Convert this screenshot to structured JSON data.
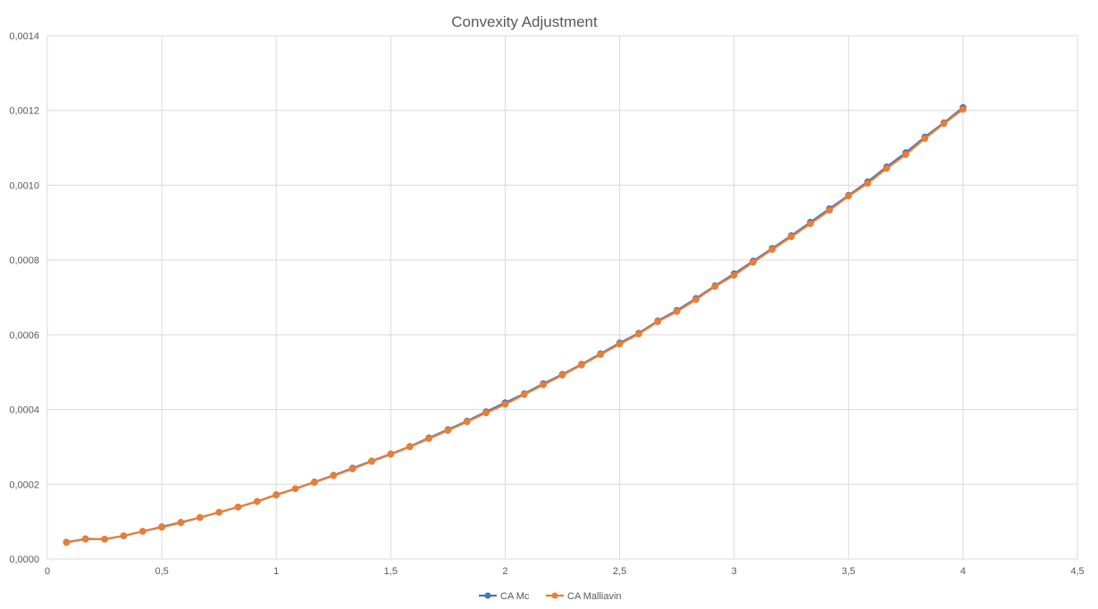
{
  "chart_data": {
    "type": "line",
    "title": "Convexity Adjustment",
    "xlabel": "",
    "ylabel": "",
    "xlim": [
      0,
      4.5
    ],
    "ylim": [
      0,
      0.0014
    ],
    "x_ticks": [
      "0",
      "0,5",
      "1",
      "1,5",
      "2",
      "2,5",
      "3",
      "3,5",
      "4",
      "4,5"
    ],
    "x_tick_values": [
      0,
      0.5,
      1,
      1.5,
      2,
      2.5,
      3,
      3.5,
      4,
      4.5
    ],
    "y_ticks": [
      "0,0000",
      "0,0002",
      "0,0004",
      "0,0006",
      "0,0008",
      "0,0010",
      "0,0012",
      "0,0014"
    ],
    "y_tick_values": [
      0,
      0.0002,
      0.0004,
      0.0006,
      0.0008,
      0.001,
      0.0012,
      0.0014
    ],
    "grid": true,
    "legend_position": "bottom",
    "x": [
      0.0833,
      0.1667,
      0.25,
      0.3333,
      0.4167,
      0.5,
      0.5833,
      0.6667,
      0.75,
      0.8333,
      0.9167,
      1.0,
      1.0833,
      1.1667,
      1.25,
      1.3333,
      1.4167,
      1.5,
      1.5833,
      1.6667,
      1.75,
      1.8333,
      1.9167,
      2.0,
      2.0833,
      2.1667,
      2.25,
      2.3333,
      2.4167,
      2.5,
      2.5833,
      2.6667,
      2.75,
      2.8333,
      2.9167,
      3.0,
      3.0833,
      3.1667,
      3.25,
      3.3333,
      3.4167,
      3.5,
      3.5833,
      3.6667,
      3.75,
      3.8333,
      3.9167,
      4.0
    ],
    "series": [
      {
        "name": "CA Mc",
        "color": "#4472c4",
        "values": [
          4.5e-05,
          5.4e-05,
          5.3e-05,
          6.2e-05,
          7.4e-05,
          8.6e-05,
          9.8e-05,
          0.000111,
          0.000125,
          0.000139,
          0.000154,
          0.000172,
          0.000188,
          0.000206,
          0.000224,
          0.000243,
          0.000262,
          0.000281,
          0.000301,
          0.000324,
          0.000346,
          0.000369,
          0.000394,
          0.000418,
          0.000442,
          0.000469,
          0.000494,
          0.000521,
          0.000549,
          0.000578,
          0.000604,
          0.000637,
          0.000665,
          0.000697,
          0.000731,
          0.000763,
          0.000797,
          0.000831,
          0.000865,
          0.000901,
          0.000937,
          0.000973,
          0.001009,
          0.001049,
          0.001087,
          0.001129,
          0.001167,
          0.001208
        ]
      },
      {
        "name": "CA Malliavin",
        "color": "#ed7d31",
        "values": [
          4.4e-05,
          5.3e-05,
          5.3e-05,
          6.2e-05,
          7.4e-05,
          8.5e-05,
          9.7e-05,
          0.000111,
          0.000125,
          0.000139,
          0.000154,
          0.000171,
          0.000188,
          0.000205,
          0.000223,
          0.000241,
          0.000261,
          0.00028,
          0.0003,
          0.000322,
          0.000344,
          0.000367,
          0.000391,
          0.000414,
          0.00044,
          0.000466,
          0.000492,
          0.000519,
          0.000547,
          0.000575,
          0.000602,
          0.000635,
          0.000662,
          0.000694,
          0.000729,
          0.000759,
          0.000794,
          0.000828,
          0.000862,
          0.000897,
          0.000933,
          0.000971,
          0.001005,
          0.001045,
          0.001082,
          0.001125,
          0.001165,
          0.001203
        ]
      }
    ]
  }
}
